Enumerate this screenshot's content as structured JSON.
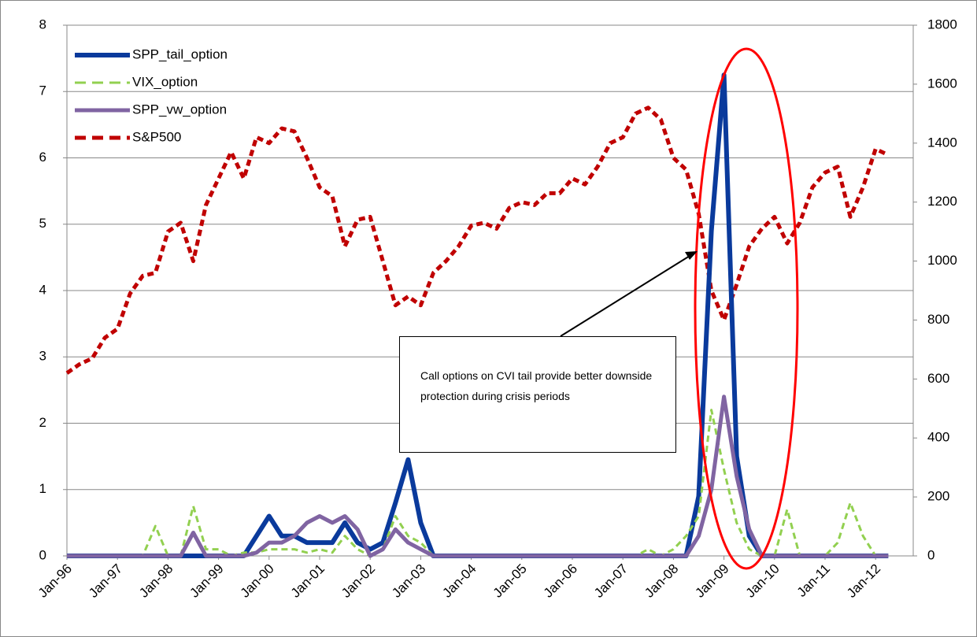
{
  "chart_data": {
    "type": "line",
    "categories": [
      "Jan-96",
      null,
      null,
      null,
      "Jan-97",
      null,
      null,
      null,
      "Jan-98",
      null,
      null,
      null,
      "Jan-99",
      null,
      null,
      null,
      "Jan-00",
      null,
      null,
      null,
      "Jan-01",
      null,
      null,
      null,
      "Jan-02",
      null,
      null,
      null,
      "Jan-03",
      null,
      null,
      null,
      "Jan-04",
      null,
      null,
      null,
      "Jan-05",
      null,
      null,
      null,
      "Jan-06",
      null,
      null,
      null,
      "Jan-07",
      null,
      null,
      null,
      "Jan-08",
      null,
      null,
      null,
      "Jan-09",
      null,
      null,
      null,
      "Jan-10",
      null,
      null,
      null,
      "Jan-11",
      null,
      null,
      null,
      "Jan-12",
      null,
      null
    ],
    "series": [
      {
        "name": "SPP_tail_option",
        "color": "#0a3a9c",
        "line_style": "solid",
        "values": [
          0,
          0,
          0,
          0,
          0,
          0,
          0,
          0,
          0,
          0,
          0,
          0,
          0,
          0,
          0,
          0.3,
          0.6,
          0.3,
          0.3,
          0.2,
          0.2,
          0.2,
          0.5,
          0.2,
          0.1,
          0.2,
          0.8,
          1.45,
          0.5,
          0,
          0,
          0,
          0,
          0,
          0,
          0,
          0,
          0,
          0,
          0,
          0,
          0,
          0,
          0,
          0,
          0,
          0,
          0,
          0,
          0,
          0.9,
          4.9,
          7.25,
          1.5,
          0.3,
          0,
          0,
          0,
          0,
          0,
          0,
          0,
          0,
          0,
          0,
          0,
          null
        ]
      },
      {
        "name": "VIX_option",
        "color": "#92d050",
        "line_style": "dashed",
        "values": [
          0,
          0,
          0,
          0,
          0,
          0,
          0,
          0.45,
          0,
          0,
          0.75,
          0.1,
          0.1,
          0,
          0.05,
          0.05,
          0.1,
          0.1,
          0.1,
          0.05,
          0.1,
          0.05,
          0.3,
          0.1,
          0,
          0.1,
          0.6,
          0.3,
          0.2,
          0,
          0,
          0,
          0,
          0,
          0,
          0,
          0,
          0,
          0,
          0,
          0,
          0,
          0,
          0,
          0,
          0,
          0.1,
          0,
          0.1,
          0.3,
          0.6,
          2.2,
          1.3,
          0.5,
          0.1,
          0,
          0,
          0.7,
          0,
          0,
          0,
          0.2,
          0.8,
          0.3,
          0,
          0,
          null
        ]
      },
      {
        "name": "SPP_vw_option",
        "color": "#8064a2",
        "line_style": "solid",
        "values": [
          0,
          0,
          0,
          0,
          0,
          0,
          0,
          0,
          0,
          0,
          0.35,
          0,
          0,
          0,
          0,
          0.05,
          0.2,
          0.2,
          0.3,
          0.5,
          0.6,
          0.5,
          0.6,
          0.4,
          0,
          0.1,
          0.4,
          0.2,
          0.1,
          0,
          0,
          0,
          0,
          0,
          0,
          0,
          0,
          0,
          0,
          0,
          0,
          0,
          0,
          0,
          0,
          0,
          0,
          0,
          0,
          0,
          0.3,
          1.0,
          2.4,
          1.2,
          0.4,
          0,
          0,
          0,
          0,
          0,
          0,
          0,
          0,
          0,
          0,
          0,
          null
        ]
      },
      {
        "name": "S&P500",
        "color": "#c00000",
        "line_style": "dashed",
        "axis": "y2",
        "values": [
          620,
          650,
          670,
          740,
          770,
          890,
          950,
          960,
          1100,
          1130,
          1000,
          1190,
          1280,
          1370,
          1280,
          1420,
          1400,
          1450,
          1440,
          1350,
          1250,
          1220,
          1050,
          1140,
          1150,
          1000,
          850,
          880,
          850,
          960,
          1000,
          1050,
          1120,
          1130,
          1110,
          1180,
          1200,
          1190,
          1230,
          1230,
          1280,
          1260,
          1320,
          1400,
          1420,
          1500,
          1520,
          1480,
          1350,
          1310,
          1160,
          900,
          800,
          920,
          1050,
          1110,
          1150,
          1060,
          1130,
          1250,
          1300,
          1320,
          1150,
          1250,
          1380,
          1360,
          null
        ]
      }
    ],
    "ylim": [
      0,
      8
    ],
    "yticks": [
      0,
      1,
      2,
      3,
      4,
      5,
      6,
      7,
      8
    ],
    "y2lim": [
      0,
      1800
    ],
    "y2ticks": [
      0,
      200,
      400,
      600,
      800,
      1000,
      1200,
      1400,
      1600,
      1800
    ],
    "grid": true,
    "legend": "upper left",
    "annotation": "Call options on CVI tail provide better downside protection during crisis periods"
  }
}
